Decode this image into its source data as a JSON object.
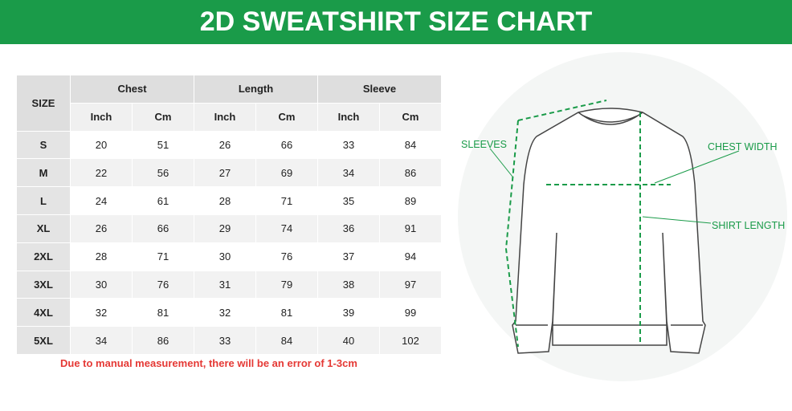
{
  "header": {
    "title": "2D SWEATSHIRT SIZE CHART"
  },
  "table": {
    "size_label": "SIZE",
    "groups": [
      "Chest",
      "Length",
      "Sleeve"
    ],
    "units": [
      "Inch",
      "Cm",
      "Inch",
      "Cm",
      "Inch",
      "Cm"
    ],
    "rows": [
      [
        "S",
        "20",
        "51",
        "26",
        "66",
        "33",
        "84"
      ],
      [
        "M",
        "22",
        "56",
        "27",
        "69",
        "34",
        "86"
      ],
      [
        "L",
        "24",
        "61",
        "28",
        "71",
        "35",
        "89"
      ],
      [
        "XL",
        "26",
        "66",
        "29",
        "74",
        "36",
        "91"
      ],
      [
        "2XL",
        "28",
        "71",
        "30",
        "76",
        "37",
        "94"
      ],
      [
        "3XL",
        "30",
        "76",
        "31",
        "79",
        "38",
        "97"
      ],
      [
        "4XL",
        "32",
        "81",
        "32",
        "81",
        "39",
        "99"
      ],
      [
        "5XL",
        "34",
        "86",
        "33",
        "84",
        "40",
        "102"
      ]
    ]
  },
  "note": "Due to manual measurement, there will be an error of 1-3cm",
  "diagram": {
    "labels": [
      "SLEEVES",
      "CHEST WIDTH",
      "SHIRT LENGTH"
    ]
  }
}
